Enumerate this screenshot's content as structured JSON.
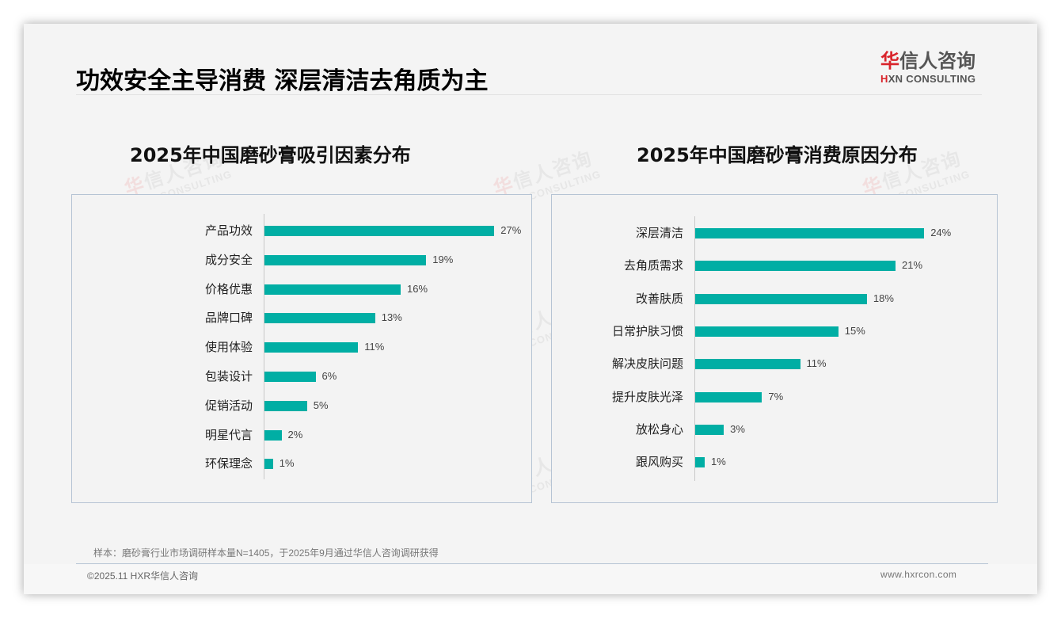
{
  "header": {
    "title": "功效安全主导消费 深层清洁去角质为主",
    "logo": {
      "cn_accent": "华",
      "cn_rest": "信人咨询",
      "en_accent": "H",
      "en_rest": "XN CONSULTING"
    }
  },
  "watermark": {
    "cn_accent": "华",
    "cn_rest": "信人咨询",
    "en": "HXN CONSULTING"
  },
  "colors": {
    "bar": "#00aea4",
    "accent_red": "#d9242b",
    "panel_border": "#b6c4d4"
  },
  "chart_data": [
    {
      "type": "bar",
      "orientation": "horizontal",
      "title": "2025年中国磨砂膏吸引因素分布",
      "categories": [
        "产品功效",
        "成分安全",
        "价格优惠",
        "品牌口碑",
        "使用体验",
        "包装设计",
        "促销活动",
        "明星代言",
        "环保理念"
      ],
      "values": [
        27,
        19,
        16,
        13,
        11,
        6,
        5,
        2,
        1
      ],
      "value_labels": [
        "27%",
        "19%",
        "16%",
        "13%",
        "11%",
        "6%",
        "5%",
        "2%",
        "1%"
      ],
      "unit": "%",
      "xlabel": "",
      "ylabel": "",
      "grid": false,
      "legend": null
    },
    {
      "type": "bar",
      "orientation": "horizontal",
      "title": "2025年中国磨砂膏消费原因分布",
      "categories": [
        "深层清洁",
        "去角质需求",
        "改善肤质",
        "日常护肤习惯",
        "解决皮肤问题",
        "提升皮肤光泽",
        "放松身心",
        "跟风购买"
      ],
      "values": [
        24,
        21,
        18,
        15,
        11,
        7,
        3,
        1
      ],
      "value_labels": [
        "24%",
        "21%",
        "18%",
        "15%",
        "11%",
        "7%",
        "3%",
        "1%"
      ],
      "unit": "%",
      "xlabel": "",
      "ylabel": "",
      "grid": false,
      "legend": null
    }
  ],
  "footer": {
    "note": "样本：磨砂膏行业市场调研样本量N=1405，于2025年9月通过华信人咨询调研获得",
    "copyright": "©2025.11 HXR华信人咨询",
    "website": "www.hxrcon.com"
  }
}
